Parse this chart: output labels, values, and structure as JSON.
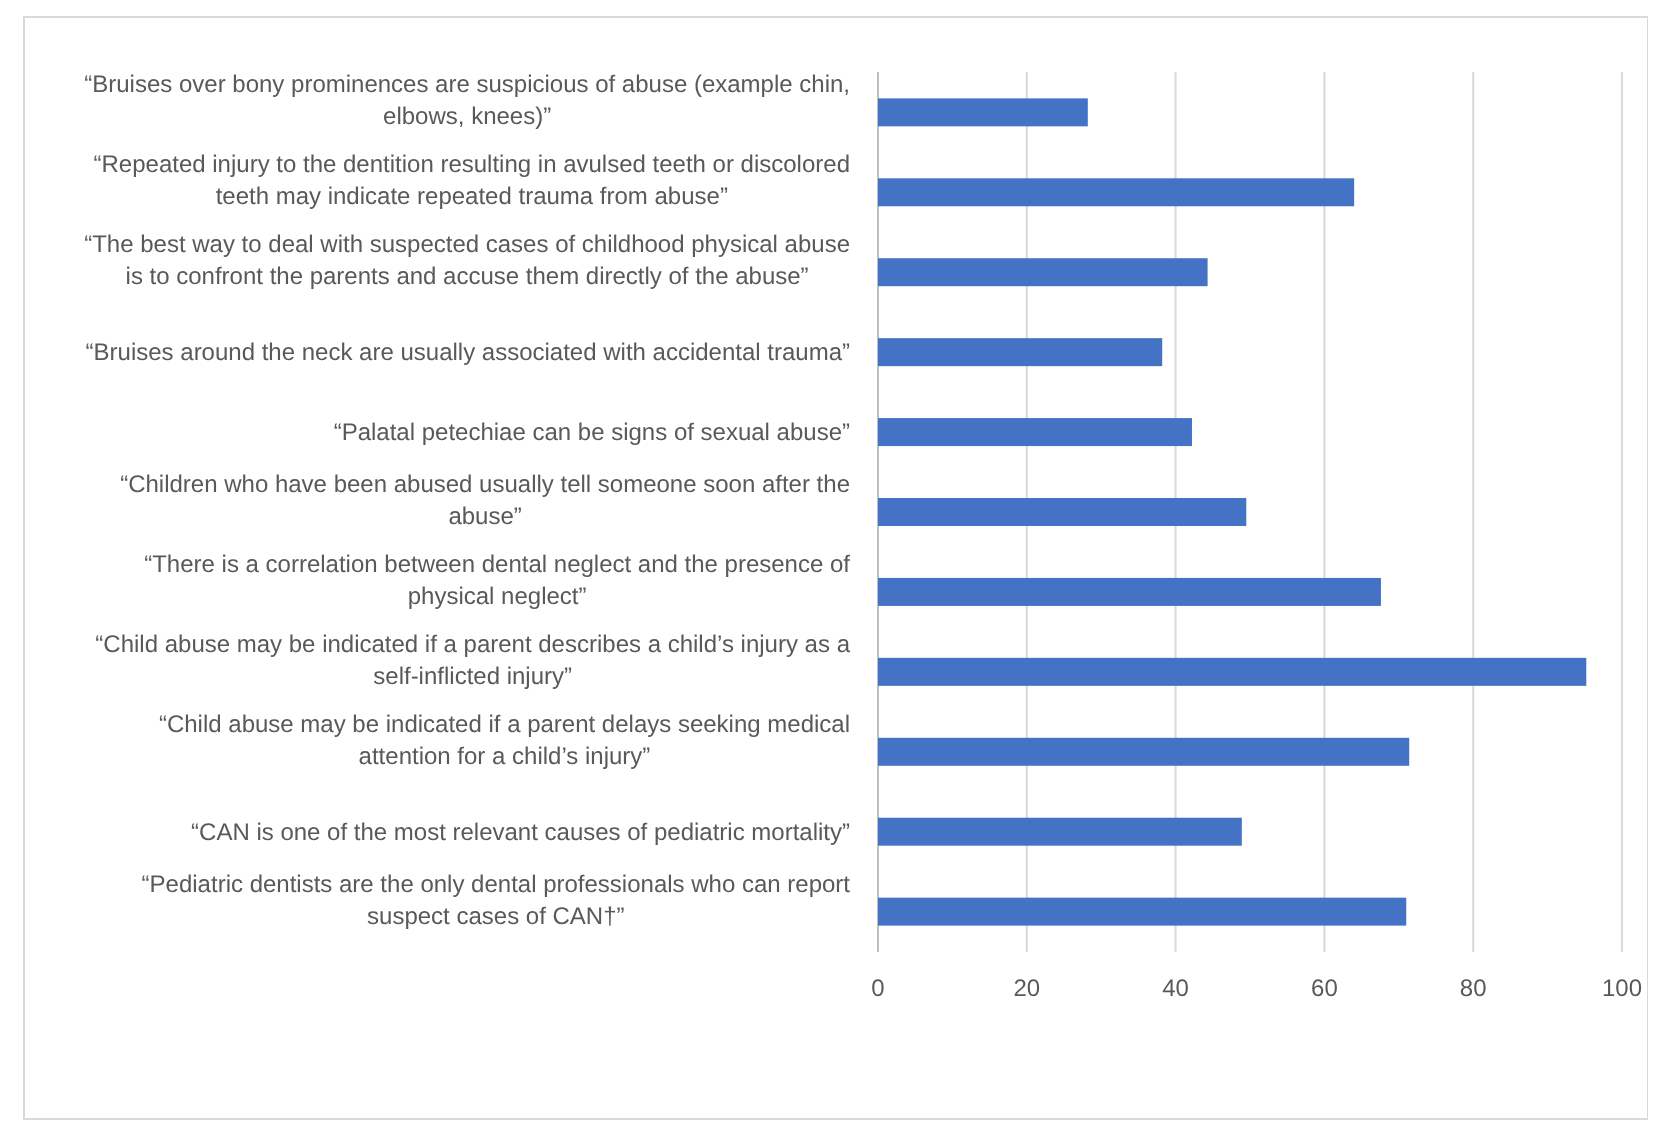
{
  "chart_data": {
    "type": "bar",
    "orientation": "horizontal",
    "categories": [
      "“Bruises over bony prominences are suspicious of abuse (example chin, elbows, knees)”",
      "“Repeated injury to the dentition resulting in avulsed teeth or discolored teeth  may indicate  repeated trauma from abuse”",
      "“The best way to deal with suspected cases of childhood physical abuse is to confront the parents and accuse them directly of the abuse”",
      "“Bruises around the neck are usually associated with accidental trauma”",
      "“Palatal petechiae can be signs of sexual abuse”",
      "“Children who have been abused usually tell someone soon after the abuse”",
      "“There is a correlation between dental neglect and the presence of physical neglect”",
      "“Child abuse may be indicated if a parent describes a child’s injury as a self-inflicted injury”",
      "“Child abuse may be indicated if a parent delays seeking medical attention for a child’s injury”",
      "“CAN is one of the most relevant causes of pediatric mortality”",
      "“Pediatric dentists are the only dental professionals who can report suspect cases of CAN†”"
    ],
    "values": [
      28.2,
      64.0,
      44.3,
      38.2,
      42.2,
      49.5,
      67.6,
      95.2,
      71.4,
      48.9,
      71.0
    ],
    "color": "#4472c4",
    "xlim": [
      0,
      100
    ],
    "xticks": [
      0,
      20,
      40,
      60,
      80,
      100
    ],
    "grid": "x"
  }
}
